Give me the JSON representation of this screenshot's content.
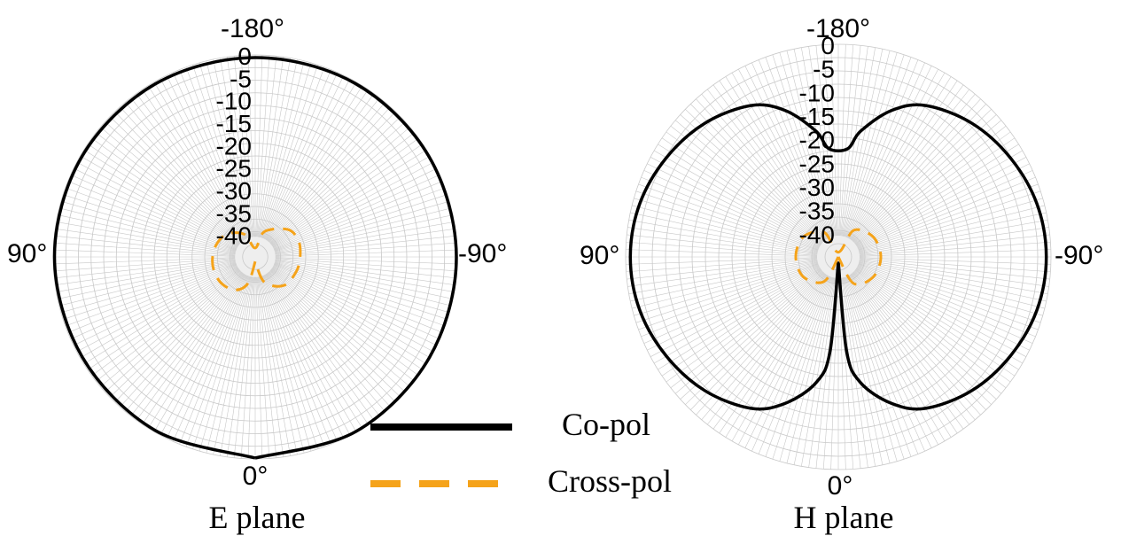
{
  "colors": {
    "co_pol": "#000000",
    "cross_pol": "#f5a31a",
    "grid": "#c8c8c8",
    "center_fill": "#eeeeee",
    "text": "#000000"
  },
  "legend": {
    "co_pol_label": "Co-pol",
    "cross_pol_label": "Cross-pol",
    "placement": "bottom-center"
  },
  "chart_data": [
    {
      "type": "polar",
      "title": "E plane",
      "angle_labels": {
        "top": "-180°",
        "bottom": "0°",
        "left": "90°",
        "right": "-90°"
      },
      "radial_tick_labels": [
        "0",
        "-5",
        "-10",
        "-15",
        "-20",
        "-25",
        "-30",
        "-35",
        "-40"
      ],
      "r_range_db": [
        -45,
        0
      ],
      "grid": true,
      "series": [
        {
          "name": "Co-pol",
          "theta_deg": [
            0,
            30,
            60,
            90,
            120,
            150,
            180,
            210,
            240,
            270,
            300,
            330,
            360
          ],
          "gain_db": [
            -0.2,
            -0.4,
            -0.5,
            -0.3,
            -0.4,
            -0.5,
            -0.6,
            -0.4,
            -0.3,
            -0.2,
            -0.2,
            -0.1,
            -0.2
          ]
        },
        {
          "name": "Cross-pol",
          "theta_deg": [
            0,
            15,
            30,
            50,
            70,
            90,
            110,
            130,
            155,
            180,
            200,
            230,
            250,
            270,
            290,
            315,
            340,
            360
          ],
          "gain_db": [
            -44,
            -39,
            -36.5,
            -35.5,
            -35.3,
            -35.5,
            -36,
            -37,
            -39.5,
            -43,
            -39,
            -35.5,
            -34.7,
            -35,
            -35.3,
            -36,
            -39,
            -44
          ]
        }
      ]
    },
    {
      "type": "polar",
      "title": "H plane",
      "angle_labels": {
        "top": "-180°",
        "bottom": "0°",
        "left": "90°",
        "right": "-90°"
      },
      "radial_tick_labels": [
        "0",
        "-5",
        "-10",
        "-15",
        "-20",
        "-25",
        "-30",
        "-35",
        "-40"
      ],
      "r_range_db": [
        -45,
        0
      ],
      "grid": true,
      "series": [
        {
          "name": "Co-pol",
          "theta_deg": [
            0,
            5,
            10,
            20,
            30,
            45,
            60,
            75,
            90,
            105,
            120,
            135,
            150,
            160,
            170,
            175,
            185,
            190,
            200,
            210,
            225,
            240,
            255,
            270,
            285,
            300,
            315,
            330,
            340,
            350,
            355,
            360
          ],
          "gain_db": [
            -44,
            -25,
            -18,
            -12,
            -8,
            -5,
            -3,
            -1.5,
            -1,
            -1.5,
            -3,
            -5,
            -8,
            -12,
            -18,
            -22,
            -22,
            -18,
            -12,
            -8,
            -5,
            -3,
            -1.5,
            -1,
            -1.5,
            -3,
            -5,
            -8,
            -12,
            -18,
            -25,
            -44
          ]
        },
        {
          "name": "Cross-pol",
          "theta_deg": [
            0,
            30,
            60,
            90,
            120,
            150,
            180,
            210,
            240,
            270,
            300,
            330,
            360
          ],
          "gain_db": [
            -45,
            -39,
            -36.5,
            -36,
            -36.5,
            -39,
            -44,
            -38.5,
            -36.5,
            -36,
            -36.5,
            -38.5,
            -45
          ]
        }
      ]
    }
  ]
}
